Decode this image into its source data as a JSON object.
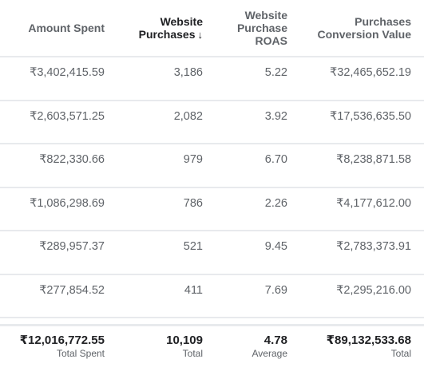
{
  "header": {
    "columns": [
      {
        "label_lines": [
          "Amount Spent"
        ]
      },
      {
        "label_lines": [
          "Website",
          "Purchases"
        ],
        "sort_icon": "↓"
      },
      {
        "label_lines": [
          "Website",
          "Purchase",
          "ROAS"
        ]
      },
      {
        "label_lines": [
          "Purchases",
          "Conversion Value"
        ]
      }
    ]
  },
  "rows": [
    {
      "amount_spent": "₹3,402,415.59",
      "website_purchases": "3,186",
      "roas": "5.22",
      "conversion_value": "₹32,465,652.19"
    },
    {
      "amount_spent": "₹2,603,571.25",
      "website_purchases": "2,082",
      "roas": "3.92",
      "conversion_value": "₹17,536,635.50"
    },
    {
      "amount_spent": "₹822,330.66",
      "website_purchases": "979",
      "roas": "6.70",
      "conversion_value": "₹8,238,871.58"
    },
    {
      "amount_spent": "₹1,086,298.69",
      "website_purchases": "786",
      "roas": "2.26",
      "conversion_value": "₹4,177,612.00"
    },
    {
      "amount_spent": "₹289,957.37",
      "website_purchases": "521",
      "roas": "9.45",
      "conversion_value": "₹2,783,373.91"
    },
    {
      "amount_spent": "₹277,854.52",
      "website_purchases": "411",
      "roas": "7.69",
      "conversion_value": "₹2,295,216.00"
    }
  ],
  "totals": {
    "amount_spent": {
      "value": "₹12,016,772.55",
      "label": "Total Spent"
    },
    "website_purchases": {
      "value": "10,109",
      "label": "Total"
    },
    "roas": {
      "value": "4.78",
      "label": "Average"
    },
    "conversion_value": {
      "value": "₹89,132,533.68",
      "label": "Total"
    }
  }
}
